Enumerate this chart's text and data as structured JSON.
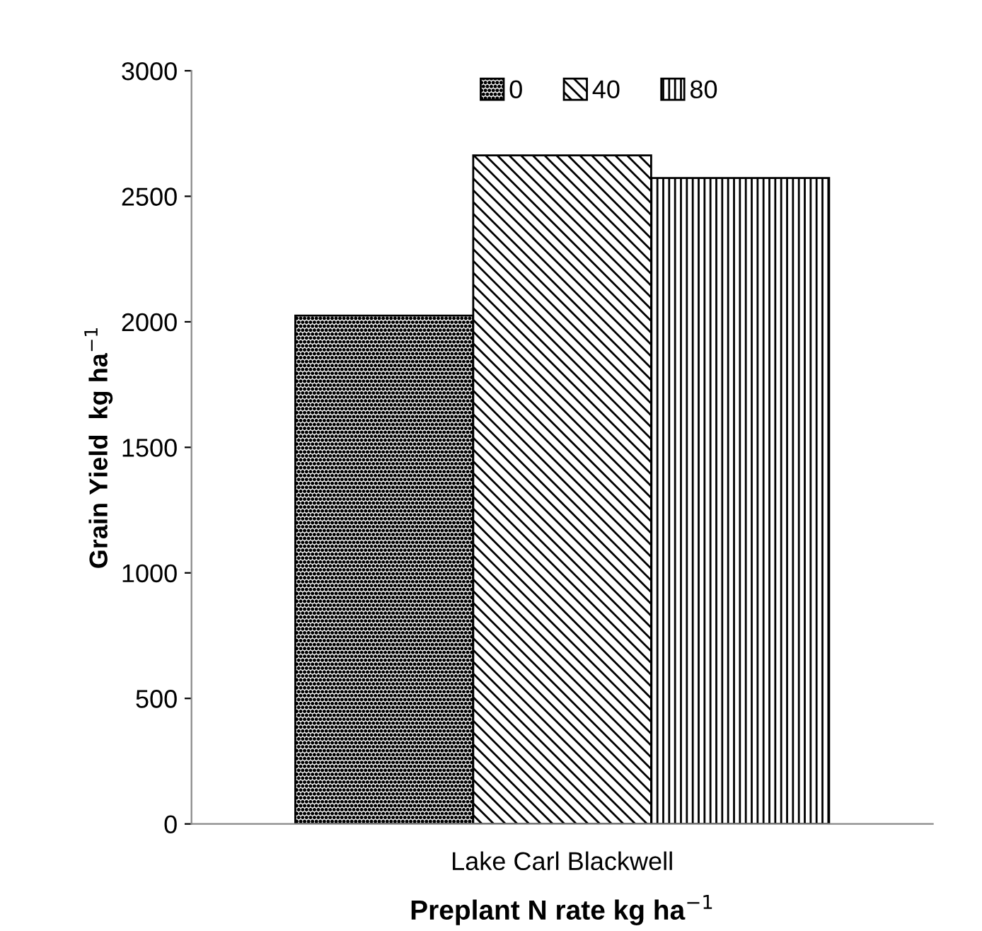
{
  "chart_data": {
    "type": "bar",
    "xlabel": "Preplant N rate kg ha$^{−1}$",
    "ylabel": "Grain Yield  kg ha$^{−1}$",
    "categories": [
      "Lake Carl Blackwell"
    ],
    "series": [
      {
        "name": "0",
        "color": "#000000",
        "values": [
          2025
        ]
      },
      {
        "name": "40",
        "color": "#000000",
        "values": [
          2663
        ]
      },
      {
        "name": "80",
        "color": "#000000",
        "values": [
          2573
        ]
      }
    ],
    "ylim": [
      0,
      3000
    ],
    "yticks": [
      0,
      500,
      1000,
      1500,
      2000,
      2500,
      3000
    ],
    "grid": false,
    "legend": "top"
  }
}
